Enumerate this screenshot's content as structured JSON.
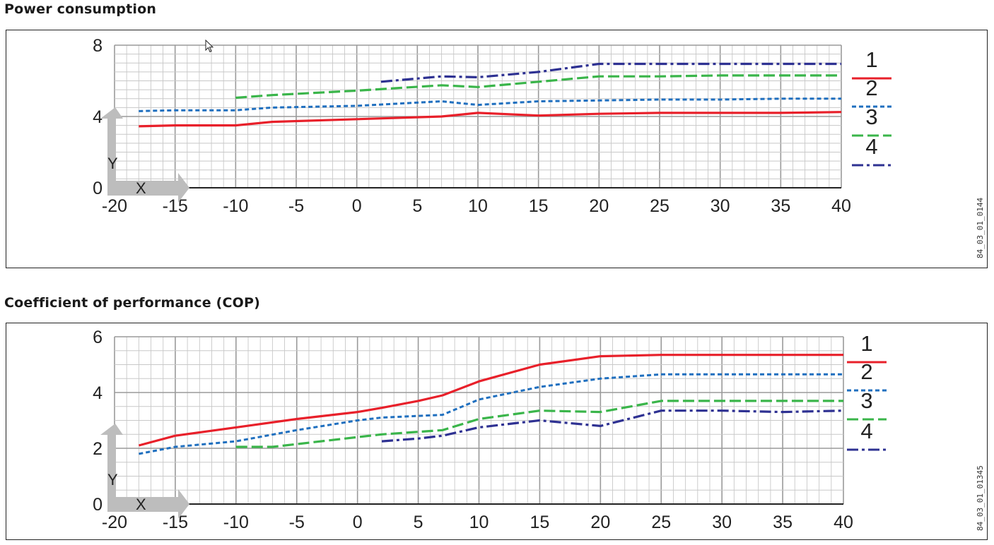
{
  "charts": [
    {
      "section_title": "Power consumption",
      "code": "84_03_01_0144"
    },
    {
      "section_title": "Coefficient of performance (COP)",
      "code": "84_03_01_01345"
    }
  ],
  "axis_arrow_labels": {
    "x": "X",
    "y": "Y"
  },
  "colors": {
    "series1": "#e8202a",
    "series2": "#1f6fbf",
    "series3": "#3ab54a",
    "series4": "#2e3192",
    "grid_major": "#9a9a9a",
    "grid_minor": "#c8c8c8",
    "axis_arrow": "#bdbdbd"
  },
  "chart_data": [
    {
      "type": "line",
      "title": "Power consumption",
      "xlabel": "X",
      "ylabel": "Y",
      "xlim": [
        -20,
        40
      ],
      "ylim": [
        0,
        8
      ],
      "x_ticks": [
        -20,
        -15,
        -10,
        -5,
        0,
        5,
        10,
        15,
        20,
        25,
        30,
        35,
        40
      ],
      "y_ticks": [
        0,
        4,
        8
      ],
      "grid": true,
      "legend": "right",
      "series": [
        {
          "name": "1",
          "style": "solid",
          "x": [
            -18,
            -15,
            -10,
            -7,
            0,
            7,
            10,
            15,
            20,
            25,
            30,
            35,
            40
          ],
          "y": [
            3.45,
            3.5,
            3.5,
            3.7,
            3.85,
            4.0,
            4.2,
            4.05,
            4.15,
            4.2,
            4.2,
            4.2,
            4.25
          ]
        },
        {
          "name": "2",
          "style": "dotted",
          "x": [
            -18,
            -15,
            -10,
            -7,
            0,
            7,
            10,
            15,
            20,
            25,
            30,
            35,
            40
          ],
          "y": [
            4.3,
            4.35,
            4.35,
            4.5,
            4.6,
            4.85,
            4.65,
            4.85,
            4.9,
            4.95,
            4.95,
            5.0,
            5.0
          ]
        },
        {
          "name": "3",
          "style": "dashed",
          "x": [
            -10,
            -7,
            0,
            7,
            10,
            15,
            20,
            25,
            30,
            35,
            40
          ],
          "y": [
            5.05,
            5.2,
            5.45,
            5.75,
            5.65,
            5.95,
            6.25,
            6.25,
            6.3,
            6.3,
            6.3
          ]
        },
        {
          "name": "4",
          "style": "dash-dot",
          "x": [
            2,
            7,
            10,
            15,
            20,
            25,
            30,
            35,
            40
          ],
          "y": [
            5.95,
            6.25,
            6.2,
            6.5,
            6.95,
            6.95,
            6.95,
            6.95,
            6.95
          ]
        }
      ]
    },
    {
      "type": "line",
      "title": "Coefficient of performance (COP)",
      "xlabel": "X",
      "ylabel": "Y",
      "xlim": [
        -20,
        40
      ],
      "ylim": [
        0,
        6
      ],
      "x_ticks": [
        -20,
        -15,
        -10,
        -5,
        0,
        5,
        10,
        15,
        20,
        25,
        30,
        35,
        40
      ],
      "y_ticks": [
        0,
        2,
        4,
        6
      ],
      "grid": true,
      "legend": "right",
      "series": [
        {
          "name": "1",
          "style": "solid",
          "x": [
            -18,
            -15,
            -10,
            -5,
            0,
            2,
            5,
            7,
            10,
            15,
            20,
            25,
            30,
            35,
            40
          ],
          "y": [
            2.1,
            2.45,
            2.75,
            3.05,
            3.3,
            3.45,
            3.7,
            3.9,
            4.4,
            5.0,
            5.3,
            5.35,
            5.35,
            5.35,
            5.35
          ]
        },
        {
          "name": "2",
          "style": "dotted",
          "x": [
            -18,
            -15,
            -10,
            -5,
            0,
            2,
            7,
            10,
            15,
            20,
            25,
            30,
            35,
            40
          ],
          "y": [
            1.8,
            2.05,
            2.25,
            2.65,
            3.0,
            3.1,
            3.2,
            3.75,
            4.2,
            4.5,
            4.65,
            4.65,
            4.65,
            4.65
          ]
        },
        {
          "name": "3",
          "style": "dashed",
          "x": [
            -10,
            -7,
            0,
            2,
            7,
            10,
            15,
            20,
            25,
            30,
            35,
            40
          ],
          "y": [
            2.05,
            2.05,
            2.4,
            2.5,
            2.65,
            3.05,
            3.35,
            3.3,
            3.7,
            3.7,
            3.7,
            3.7
          ]
        },
        {
          "name": "4",
          "style": "dash-dot",
          "x": [
            2,
            5,
            7,
            10,
            15,
            20,
            25,
            30,
            35,
            40
          ],
          "y": [
            2.25,
            2.35,
            2.45,
            2.75,
            3.0,
            2.8,
            3.35,
            3.35,
            3.3,
            3.35
          ]
        }
      ]
    }
  ]
}
